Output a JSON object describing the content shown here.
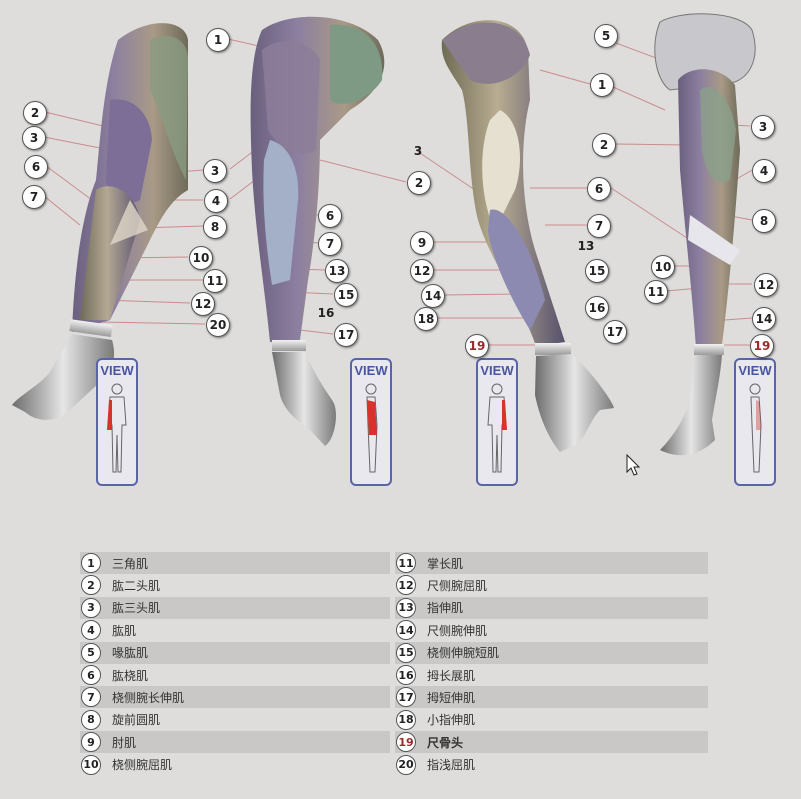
{
  "view_label": "VIEW",
  "legend": [
    {
      "num": "1",
      "name": "三角肌"
    },
    {
      "num": "2",
      "name": "肱二头肌"
    },
    {
      "num": "3",
      "name": "肱三头肌"
    },
    {
      "num": "4",
      "name": "肱肌"
    },
    {
      "num": "5",
      "name": "喙肱肌"
    },
    {
      "num": "6",
      "name": "肱桡肌"
    },
    {
      "num": "7",
      "name": "桡侧腕长伸肌"
    },
    {
      "num": "8",
      "name": "旋前圆肌"
    },
    {
      "num": "9",
      "name": "肘肌"
    },
    {
      "num": "10",
      "name": "桡侧腕屈肌"
    },
    {
      "num": "11",
      "name": "掌长肌"
    },
    {
      "num": "12",
      "name": "尺侧腕屈肌"
    },
    {
      "num": "13",
      "name": "指伸肌"
    },
    {
      "num": "14",
      "name": "尺侧腕伸肌"
    },
    {
      "num": "15",
      "name": "桡侧伸腕短肌"
    },
    {
      "num": "16",
      "name": "拇长展肌"
    },
    {
      "num": "17",
      "name": "拇短伸肌"
    },
    {
      "num": "18",
      "name": "小指伸肌"
    },
    {
      "num": "19",
      "name": "尺骨头",
      "highlight": true
    },
    {
      "num": "20",
      "name": "指浅屈肌"
    }
  ],
  "colors": {
    "highlight": "#9b2a2a",
    "view_border": "#5a64a8",
    "background": "#dedddb"
  },
  "icons": [
    "mouse-cursor-icon",
    "human-figure-icon"
  ]
}
